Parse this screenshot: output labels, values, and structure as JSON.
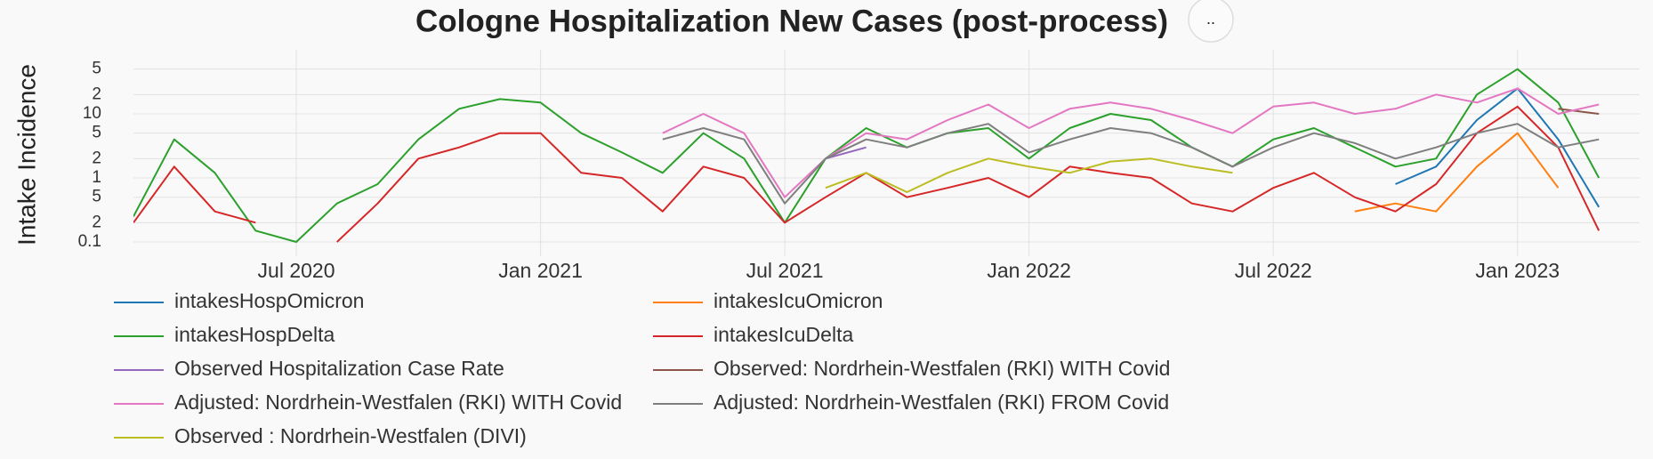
{
  "chart_data": {
    "type": "line",
    "title": "Cologne Hospitalization New Cases (post-process)",
    "y_label": "Intake Incidence",
    "ylog": true,
    "grid": true,
    "ylim": [
      0.06,
      100
    ],
    "yticks": [
      0.1,
      {
        "value": 0.2,
        "label": "2"
      },
      {
        "value": 0.5,
        "label": "5"
      },
      1,
      2,
      5,
      10,
      {
        "value": 20,
        "label": "2"
      },
      {
        "value": 50,
        "label": "5"
      }
    ],
    "xlim": [
      "2020-03",
      "2023-04"
    ],
    "xticks": [
      {
        "value": "2020-07",
        "label": "Jul 2020"
      },
      {
        "value": "2021-01",
        "label": "Jan 2021"
      },
      {
        "value": "2021-07",
        "label": "Jul 2021"
      },
      {
        "value": "2022-01",
        "label": "Jan 2022"
      },
      {
        "value": "2022-07",
        "label": "Jul 2022"
      },
      {
        "value": "2023-01",
        "label": "Jan 2023"
      }
    ],
    "x": [
      "2020-03",
      "2020-04",
      "2020-05",
      "2020-06",
      "2020-07",
      "2020-08",
      "2020-09",
      "2020-10",
      "2020-11",
      "2020-12",
      "2021-01",
      "2021-02",
      "2021-03",
      "2021-04",
      "2021-05",
      "2021-06",
      "2021-07",
      "2021-08",
      "2021-09",
      "2021-10",
      "2021-11",
      "2021-12",
      "2022-01",
      "2022-02",
      "2022-03",
      "2022-04",
      "2022-05",
      "2022-06",
      "2022-07",
      "2022-08",
      "2022-09",
      "2022-10",
      "2022-11",
      "2022-12",
      "2023-01",
      "2023-02",
      "2023-03"
    ],
    "series": [
      {
        "name": "intakesHospOmicron",
        "color": "#1f77b4",
        "values": [
          null,
          null,
          null,
          null,
          null,
          null,
          null,
          null,
          null,
          null,
          null,
          null,
          null,
          null,
          null,
          null,
          null,
          null,
          null,
          null,
          null,
          null,
          null,
          null,
          null,
          null,
          null,
          null,
          null,
          null,
          null,
          0.8,
          1.5,
          8,
          25,
          4,
          0.35
        ]
      },
      {
        "name": "intakesIcuOmicron",
        "color": "#ff7f0e",
        "values": [
          null,
          null,
          null,
          null,
          null,
          null,
          null,
          null,
          null,
          null,
          null,
          null,
          null,
          null,
          null,
          null,
          null,
          null,
          null,
          null,
          null,
          null,
          null,
          null,
          null,
          null,
          null,
          null,
          null,
          null,
          0.3,
          0.4,
          0.3,
          1.5,
          5,
          0.7,
          null
        ]
      },
      {
        "name": "intakesHospDelta",
        "color": "#2ca02c",
        "values": [
          0.25,
          4,
          1.2,
          0.15,
          0.1,
          0.4,
          0.8,
          4,
          12,
          17,
          15,
          5,
          2.5,
          1.2,
          5,
          2,
          0.2,
          2,
          6,
          3,
          5,
          6,
          2,
          6,
          10,
          8,
          3,
          1.5,
          4,
          6,
          3,
          1.5,
          2,
          20,
          50,
          15,
          1
        ]
      },
      {
        "name": "intakesIcuDelta",
        "color": "#d62728",
        "values": [
          0.2,
          1.5,
          0.3,
          0.2,
          null,
          0.1,
          0.4,
          2,
          3,
          5,
          5,
          1.2,
          1,
          0.3,
          1.5,
          1,
          0.2,
          0.5,
          1.2,
          0.5,
          0.7,
          1,
          0.5,
          1.5,
          1.2,
          1,
          0.4,
          0.3,
          0.7,
          1.2,
          0.5,
          0.3,
          0.8,
          5,
          13,
          3,
          0.15
        ]
      },
      {
        "name": "Observed Hospitalization Case Rate",
        "color": "#9467bd",
        "values": [
          null,
          null,
          null,
          null,
          null,
          null,
          null,
          null,
          null,
          null,
          null,
          null,
          null,
          null,
          null,
          null,
          null,
          2,
          3,
          null,
          null,
          null,
          null,
          null,
          null,
          null,
          null,
          null,
          null,
          null,
          null,
          null,
          null,
          null,
          null,
          null,
          null
        ]
      },
      {
        "name": "Observed: Nordrhein-Westfalen (RKI) WITH Covid",
        "color": "#8c564b",
        "values": [
          null,
          null,
          null,
          null,
          null,
          null,
          null,
          null,
          null,
          null,
          null,
          null,
          null,
          null,
          null,
          null,
          null,
          null,
          null,
          null,
          null,
          null,
          null,
          null,
          null,
          null,
          null,
          null,
          null,
          null,
          null,
          null,
          null,
          null,
          null,
          12,
          10
        ]
      },
      {
        "name": "Adjusted: Nordrhein-Westfalen (RKI) WITH Covid",
        "color": "#e377c2",
        "values": [
          null,
          null,
          null,
          null,
          null,
          null,
          null,
          null,
          null,
          null,
          null,
          null,
          null,
          5,
          10,
          5,
          0.5,
          2,
          5,
          4,
          8,
          14,
          6,
          12,
          15,
          12,
          8,
          5,
          13,
          15,
          10,
          12,
          20,
          15,
          25,
          10,
          14
        ]
      },
      {
        "name": "Adjusted: Nordrhein-Westfalen (RKI) FROM Covid",
        "color": "#7f7f7f",
        "values": [
          null,
          null,
          null,
          null,
          null,
          null,
          null,
          null,
          null,
          null,
          null,
          null,
          null,
          4,
          6,
          4,
          0.4,
          2,
          4,
          3,
          5,
          7,
          2.5,
          4,
          6,
          5,
          3,
          1.5,
          3,
          5,
          3.5,
          2,
          3,
          5,
          7,
          3,
          4
        ]
      },
      {
        "name": "Observed : Nordrhein-Westfalen (DIVI)",
        "color": "#bcbd22",
        "values": [
          null,
          null,
          null,
          null,
          null,
          null,
          null,
          null,
          null,
          null,
          null,
          null,
          null,
          null,
          null,
          null,
          null,
          0.7,
          1.2,
          0.6,
          1.2,
          2,
          1.5,
          1.2,
          1.8,
          2,
          1.5,
          1.2,
          null,
          null,
          null,
          null,
          null,
          null,
          null,
          null,
          null
        ]
      }
    ]
  },
  "toolbar": {
    "button": ".."
  }
}
